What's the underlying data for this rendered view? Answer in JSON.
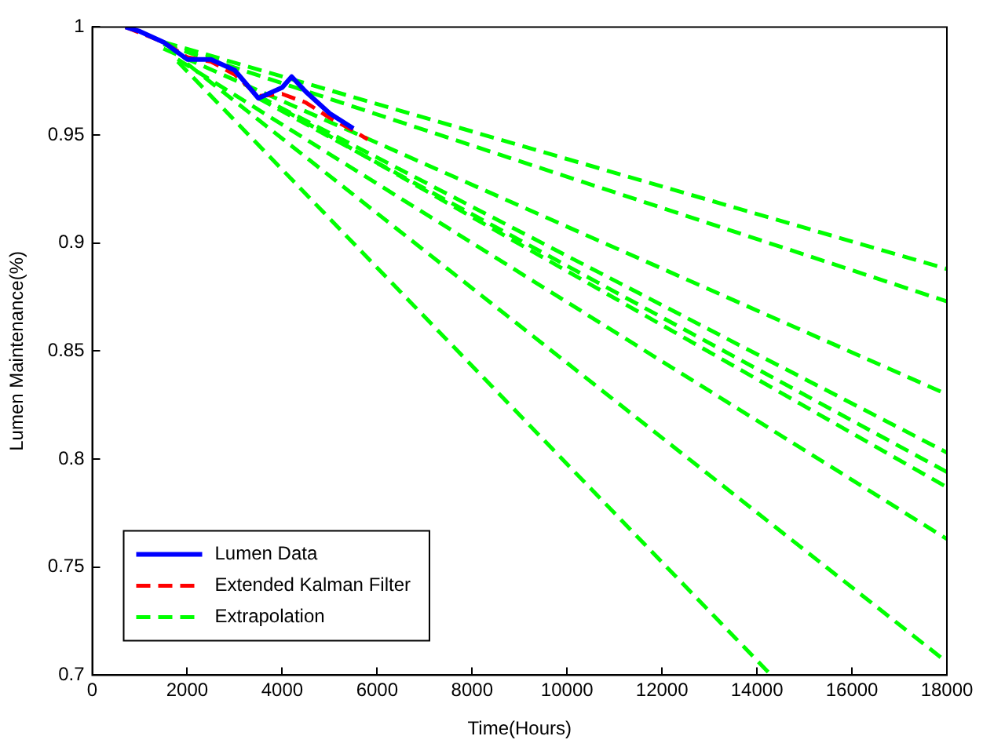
{
  "chart_data": {
    "type": "line",
    "xlabel": "Time(Hours)",
    "ylabel": "Lumen Maintenance(%)",
    "xlim": [
      0,
      18000
    ],
    "ylim": [
      0.7,
      1
    ],
    "xticks": [
      0,
      2000,
      4000,
      6000,
      8000,
      10000,
      12000,
      14000,
      16000,
      18000
    ],
    "yticks": [
      0.7,
      0.75,
      0.8,
      0.85,
      0.9,
      0.95,
      1
    ],
    "grid": false,
    "legend": "bottom left",
    "marker": "none",
    "series": [
      {
        "name": "Lumen Data",
        "color": "#0000ff",
        "line_style": "solid",
        "x": [
          700,
          1000,
          1500,
          2000,
          2500,
          3000,
          3500,
          4000,
          4200,
          4500,
          5000,
          5500
        ],
        "values": [
          1,
          0.998,
          0.993,
          0.985,
          0.985,
          0.98,
          0.967,
          0.972,
          0.977,
          0.97,
          0.96,
          0.953
        ]
      },
      {
        "name": "Extended Kalman Filter",
        "color": "#ff0000",
        "line_style": "dashed",
        "x": [
          700,
          1500,
          2000,
          2500,
          3000,
          3500,
          4000,
          4500,
          5000,
          5500,
          5800
        ],
        "values": [
          1,
          0.993,
          0.986,
          0.984,
          0.978,
          0.968,
          0.969,
          0.965,
          0.958,
          0.952,
          0.948
        ]
      },
      {
        "name": "Extrapolation",
        "color": "#00ff00",
        "line_style": "dashed",
        "x": [
          1500,
          18000
        ],
        "values": [
          0.993,
          0.888
        ]
      },
      {
        "color": "#00ff00",
        "line_style": "dashed",
        "x": [
          1500,
          18000
        ],
        "values": [
          0.992,
          0.873
        ]
      },
      {
        "color": "#00ff00",
        "line_style": "dashed",
        "x": [
          1500,
          18000
        ],
        "values": [
          0.99,
          0.83
        ]
      },
      {
        "color": "#00ff00",
        "line_style": "dashed",
        "x": [
          3500,
          18000
        ],
        "values": [
          0.968,
          0.803
        ]
      },
      {
        "color": "#00ff00",
        "line_style": "dashed",
        "x": [
          3500,
          18000
        ],
        "values": [
          0.967,
          0.794
        ]
      },
      {
        "color": "#00ff00",
        "line_style": "dashed",
        "x": [
          4000,
          18000
        ],
        "values": [
          0.962,
          0.787
        ]
      },
      {
        "color": "#00ff00",
        "line_style": "dashed",
        "x": [
          1800,
          18000
        ],
        "values": [
          0.985,
          0.763
        ]
      },
      {
        "color": "#00ff00",
        "line_style": "dashed",
        "x": [
          2000,
          18000
        ],
        "values": [
          0.983,
          0.706
        ]
      },
      {
        "color": "#00ff00",
        "line_style": "dashed",
        "x": [
          1800,
          14300
        ],
        "values": [
          0.984,
          0.7
        ]
      }
    ]
  }
}
